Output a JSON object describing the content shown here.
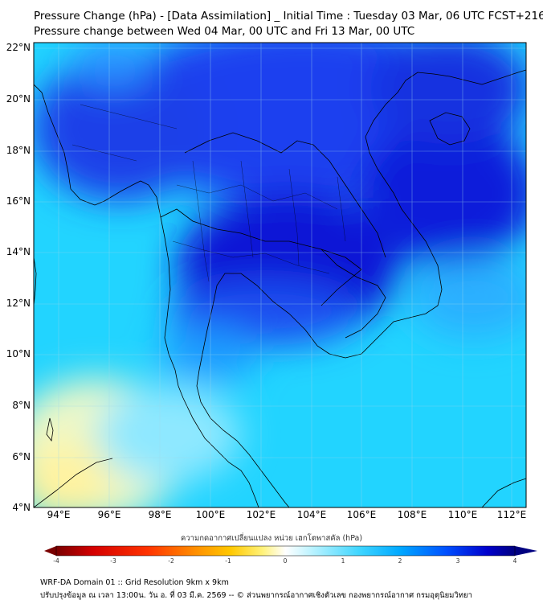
{
  "header": {
    "title_line1": "Pressure Change (hPa) - [Data Assimilation] _ Initial Time : Tuesday 03 Mar, 06 UTC FCST+216",
    "title_line2": "Pressure change between Wed 04 Mar, 00 UTC and Fri 13 Mar, 00 UTC"
  },
  "map": {
    "lat_labels": [
      "22°N",
      "20°N",
      "18°N",
      "16°N",
      "14°N",
      "12°N",
      "10°N",
      "8°N",
      "6°N",
      "4°N"
    ],
    "lon_labels": [
      "94°E",
      "96°E",
      "98°E",
      "100°E",
      "102°E",
      "104°E",
      "106°E",
      "108°E",
      "110°E",
      "112°E"
    ],
    "lat_range": [
      4,
      22.3
    ],
    "lon_range": [
      93,
      112.5
    ],
    "grid": true
  },
  "colorbar": {
    "title": "ความกดอากาศเปลี่ยนแปลง หน่วย เฮกโตพาสคัล (hPa)",
    "ticks": [
      "-4",
      "-3",
      "-2",
      "-1",
      "0",
      "1",
      "2",
      "3",
      "4"
    ],
    "range": [
      -4,
      4
    ],
    "colors": [
      "#7a0000",
      "#d40000",
      "#ff3300",
      "#ff8c00",
      "#ffc800",
      "#fff27a",
      "#ffffff",
      "#b8f2ff",
      "#40d6ff",
      "#00a8ff",
      "#0050ff",
      "#0000cc",
      "#000080"
    ]
  },
  "footer": {
    "line1": "WRF-DA Domain 01 :: Grid Resolution 9km x 9km",
    "line2": "ปรับปรุงข้อมูล ณ เวลา 13:00น. วัน อ. ที่ 03 มี.ค. 2569 -- © ส่วนพยากรณ์อากาศเชิงตัวเลข กองพยากรณ์อากาศ กรมอุตุนิยมวิทยา"
  }
}
